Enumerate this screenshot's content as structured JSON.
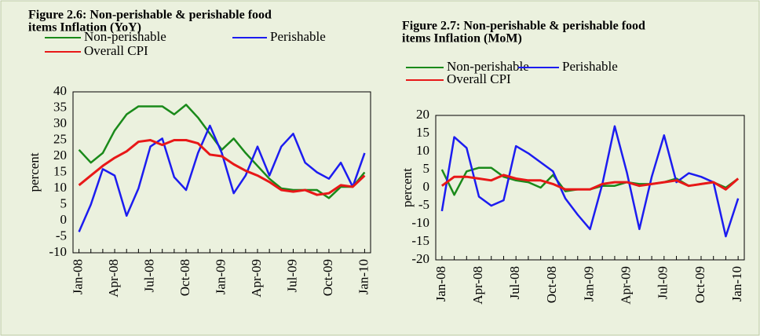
{
  "chart_data": [
    {
      "type": "line",
      "title": [
        "Figure 2.6: Non-perishable & perishable food",
        "items Inflation (YoY)"
      ],
      "y_label": "percent",
      "categories": [
        "Jan-08",
        null,
        null,
        "Apr-08",
        null,
        null,
        "Jul-08",
        null,
        null,
        "Oct-08",
        null,
        null,
        "Jan-09",
        null,
        null,
        "Apr-09",
        null,
        null,
        "Jul-09",
        null,
        null,
        "Oct-09",
        null,
        null,
        "Jan-10"
      ],
      "series": [
        {
          "name": "Non-perishable",
          "color": "#1a8a1a",
          "values": [
            22,
            18,
            21,
            28,
            33,
            35.5,
            35.5,
            35.5,
            33,
            36,
            32,
            27,
            22,
            25.5,
            21,
            17,
            13,
            10,
            9.5,
            9.5,
            9.5,
            7,
            10.5,
            10.5,
            15
          ]
        },
        {
          "name": "Perishable",
          "color": "#1c1cf0",
          "values": [
            -3.5,
            5,
            16,
            14,
            1.5,
            10,
            23,
            25.5,
            13.5,
            9.5,
            21,
            29.5,
            21,
            8.5,
            14,
            23,
            14,
            23,
            27,
            18,
            15,
            13,
            18,
            10.5,
            21
          ]
        },
        {
          "name": "Overall CPI",
          "color": "#e81818",
          "values": [
            11,
            14,
            17,
            19.5,
            21.5,
            24.5,
            25,
            23.5,
            25,
            25,
            24,
            20.5,
            20,
            17.5,
            15.5,
            14,
            12,
            9.5,
            9,
            9.5,
            8,
            8.5,
            11,
            10.5,
            14
          ]
        }
      ],
      "ylim": [
        -10,
        40
      ],
      "yticks": [
        -10,
        -5,
        0,
        5,
        10,
        15,
        20,
        25,
        30,
        35,
        40
      ],
      "grid": false
    },
    {
      "type": "line",
      "title": [
        "Figure 2.7: Non-perishable & perishable food",
        "items Inflation (MoM)"
      ],
      "y_label": "percent",
      "categories": [
        "Jan-08",
        null,
        null,
        "Apr-08",
        null,
        null,
        "Jul-08",
        null,
        null,
        "Oct-08",
        null,
        null,
        "Jan-09",
        null,
        null,
        "Apr-09",
        null,
        null,
        "Jul-09",
        null,
        null,
        "Oct-09",
        null,
        null,
        "Jan-10"
      ],
      "series": [
        {
          "name": "Non-perishable",
          "color": "#1a8a1a",
          "values": [
            5,
            -2,
            4.5,
            5.5,
            5.5,
            3,
            2,
            1.5,
            0,
            3.5,
            -1,
            -0.5,
            -0.5,
            0.5,
            0.5,
            1.5,
            1,
            1,
            1.5,
            2.5,
            0.5,
            1,
            1.5,
            0,
            2.5
          ]
        },
        {
          "name": "Perishable",
          "color": "#1c1cf0",
          "values": [
            -6.5,
            14,
            11,
            -2.5,
            -5,
            -3.5,
            11.5,
            9.5,
            7,
            4.5,
            -3,
            -7.5,
            -11.5,
            1,
            17,
            4,
            -11.5,
            3,
            14.5,
            1.5,
            4,
            3,
            1.5,
            -13.5,
            -3
          ]
        },
        {
          "name": "Overall CPI",
          "color": "#e81818",
          "values": [
            0.5,
            3,
            3,
            2.5,
            2,
            3.5,
            2.5,
            2,
            2,
            1,
            -0.5,
            -0.5,
            -0.5,
            1,
            1.5,
            1.5,
            0.5,
            1,
            1.5,
            2,
            0.5,
            1,
            1.5,
            -0.5,
            2.5
          ]
        }
      ],
      "ylim": [
        -20,
        20
      ],
      "yticks": [
        -20,
        -15,
        -10,
        -5,
        0,
        5,
        10,
        15,
        20
      ],
      "grid": false
    }
  ]
}
